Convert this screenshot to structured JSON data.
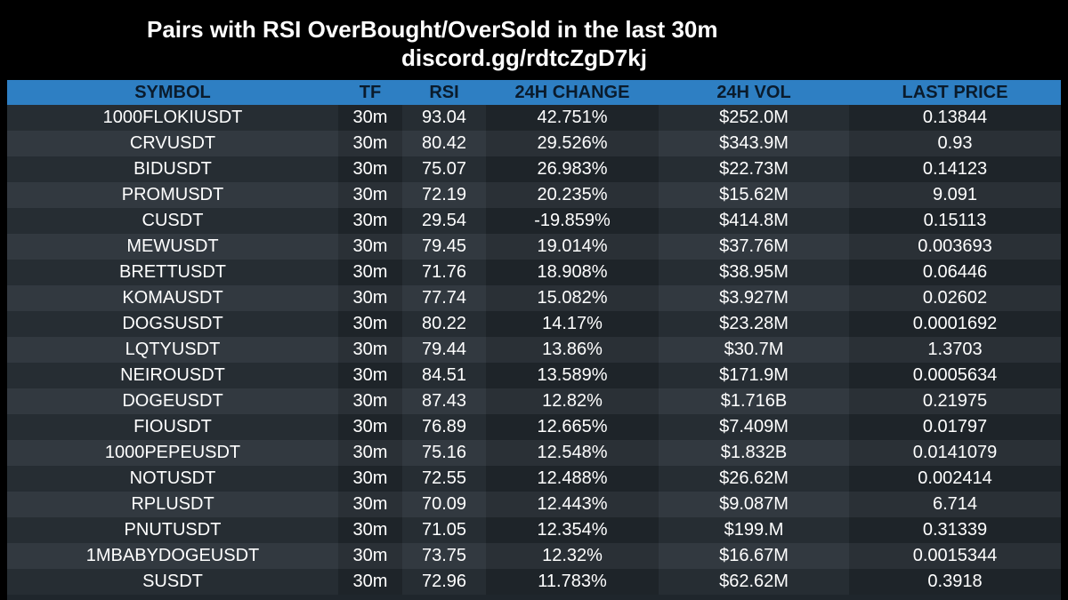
{
  "header": {
    "title": "Pairs with RSI OverBought/OverSold in the last 30m",
    "subtitle": "discord.gg/rdtcZgD7kj"
  },
  "table": {
    "columns": [
      "SYMBOL",
      "TF",
      "RSI",
      "24H CHANGE",
      "24H VOL",
      "LAST PRICE"
    ],
    "rows": [
      [
        "1000FLOKIUSDT",
        "30m",
        "93.04",
        "42.751%",
        "$252.0M",
        "0.13844"
      ],
      [
        "CRVUSDT",
        "30m",
        "80.42",
        "29.526%",
        "$343.9M",
        "0.93"
      ],
      [
        "BIDUSDT",
        "30m",
        "75.07",
        "26.983%",
        "$22.73M",
        "0.14123"
      ],
      [
        "PROMUSDT",
        "30m",
        "72.19",
        "20.235%",
        "$15.62M",
        "9.091"
      ],
      [
        "CUSDT",
        "30m",
        "29.54",
        "-19.859%",
        "$414.8M",
        "0.15113"
      ],
      [
        "MEWUSDT",
        "30m",
        "79.45",
        "19.014%",
        "$37.76M",
        "0.003693"
      ],
      [
        "BRETTUSDT",
        "30m",
        "71.76",
        "18.908%",
        "$38.95M",
        "0.06446"
      ],
      [
        "KOMAUSDT",
        "30m",
        "77.74",
        "15.082%",
        "$3.927M",
        "0.02602"
      ],
      [
        "DOGSUSDT",
        "30m",
        "80.22",
        "14.17%",
        "$23.28M",
        "0.0001692"
      ],
      [
        "LQTYUSDT",
        "30m",
        "79.44",
        "13.86%",
        "$30.7M",
        "1.3703"
      ],
      [
        "NEIROUSDT",
        "30m",
        "84.51",
        "13.589%",
        "$171.9M",
        "0.0005634"
      ],
      [
        "DOGEUSDT",
        "30m",
        "87.43",
        "12.82%",
        "$1.716B",
        "0.21975"
      ],
      [
        "FIOUSDT",
        "30m",
        "76.89",
        "12.665%",
        "$7.409M",
        "0.01797"
      ],
      [
        "1000PEPEUSDT",
        "30m",
        "75.16",
        "12.548%",
        "$1.832B",
        "0.0141079"
      ],
      [
        "NOTUSDT",
        "30m",
        "72.55",
        "12.488%",
        "$26.62M",
        "0.002414"
      ],
      [
        "RPLUSDT",
        "30m",
        "70.09",
        "12.443%",
        "$9.087M",
        "6.714"
      ],
      [
        "PNUTUSDT",
        "30m",
        "71.05",
        "12.354%",
        "$199.M",
        "0.31339"
      ],
      [
        "1MBABYDOGEUSDT",
        "30m",
        "73.75",
        "12.32%",
        "$16.67M",
        "0.0015344"
      ],
      [
        "SUSDT",
        "30m",
        "72.96",
        "11.783%",
        "$62.62M",
        "0.3918"
      ]
    ]
  },
  "colors": {
    "background": "#000000",
    "header_bar": "#2e7fc3",
    "header_text": "#0a1b2c",
    "row_odd": "#262d33",
    "row_even": "#323940",
    "text": "#ffffff"
  }
}
